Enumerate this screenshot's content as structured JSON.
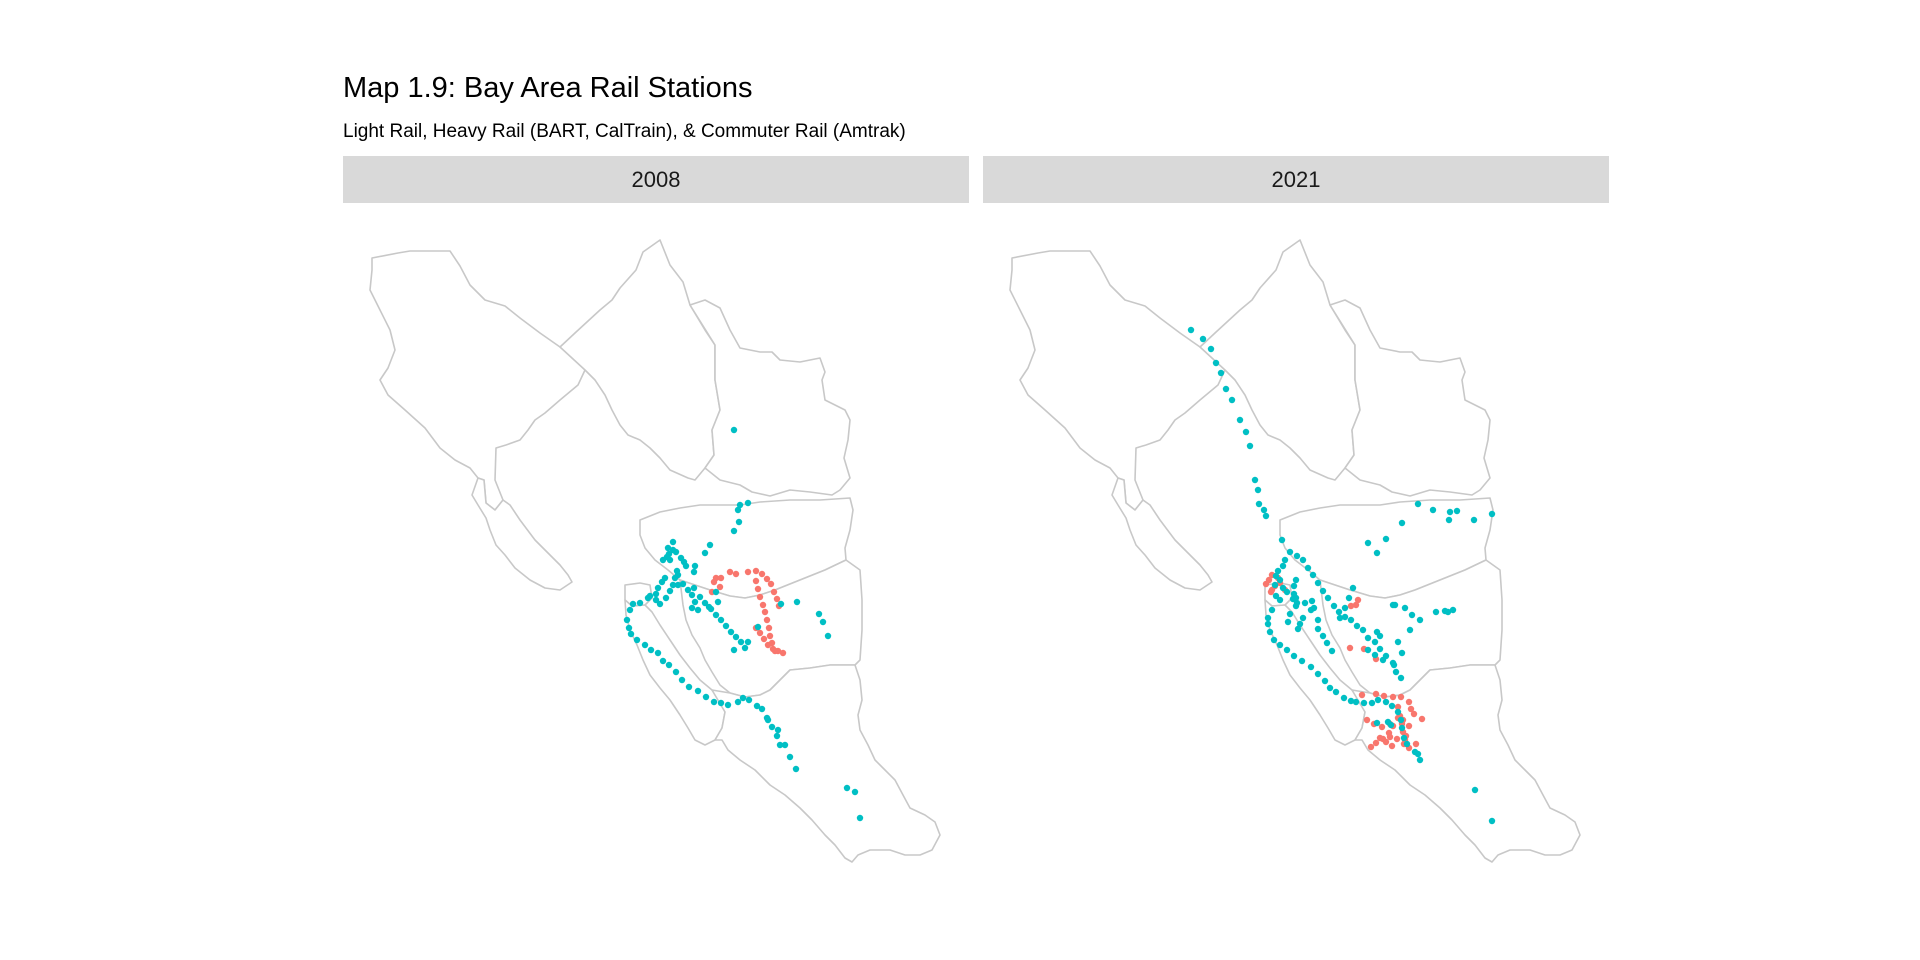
{
  "chart": {
    "title": "Map 1.9: Bay Area Rail Stations",
    "subtitle": "Light Rail, Heavy Rail (BART, CalTrain), & Commuter Rail (Amtrak)"
  },
  "colors": {
    "light_rail": "#f8766d",
    "heavy_commuter_rail": "#00bfc4",
    "boundary": "#c8c8c8",
    "strip": "#d9d9d9"
  },
  "panels": [
    {
      "label": "2008"
    },
    {
      "label": "2021"
    }
  ],
  "chart_data": {
    "type": "scatter",
    "note_series_colors": "salmon = light rail, teal = heavy/commuter rail",
    "panels": [
      "2008",
      "2021"
    ],
    "series": [
      {
        "color": "#f8766d",
        "points_2008": [
          [
            712,
            592
          ],
          [
            720,
            587
          ],
          [
            714,
            582
          ],
          [
            716,
            578
          ],
          [
            721,
            578
          ],
          [
            730,
            572
          ],
          [
            736,
            574
          ],
          [
            748,
            572
          ],
          [
            756,
            571
          ],
          [
            762,
            574
          ],
          [
            767,
            579
          ],
          [
            771,
            584
          ],
          [
            774,
            592
          ],
          [
            777,
            599
          ],
          [
            779,
            606
          ],
          [
            756,
            581
          ],
          [
            758,
            589
          ],
          [
            760,
            597
          ],
          [
            763,
            605
          ],
          [
            765,
            612
          ],
          [
            767,
            620
          ],
          [
            769,
            628
          ],
          [
            770,
            636
          ],
          [
            772,
            643
          ],
          [
            775,
            651
          ],
          [
            756,
            628
          ],
          [
            760,
            633
          ],
          [
            764,
            639
          ],
          [
            768,
            645
          ],
          [
            773,
            649
          ],
          [
            778,
            651
          ],
          [
            783,
            653
          ]
        ],
        "points_2021": [
          [
            1271,
            592
          ],
          [
            1275,
            586
          ],
          [
            1269,
            580
          ],
          [
            1278,
            578
          ],
          [
            1272,
            575
          ],
          [
            1280,
            583
          ],
          [
            1266,
            584
          ],
          [
            1272,
            590
          ],
          [
            1285,
            590
          ],
          [
            1358,
            600
          ],
          [
            1356,
            605
          ],
          [
            1351,
            606
          ],
          [
            1350,
            648
          ],
          [
            1364,
            649
          ],
          [
            1376,
            659
          ],
          [
            1362,
            695
          ],
          [
            1376,
            694
          ],
          [
            1384,
            696
          ],
          [
            1393,
            697
          ],
          [
            1401,
            697
          ],
          [
            1409,
            702
          ],
          [
            1411,
            709
          ],
          [
            1414,
            714
          ],
          [
            1422,
            719
          ],
          [
            1398,
            707
          ],
          [
            1400,
            716
          ],
          [
            1402,
            724
          ],
          [
            1403,
            732
          ],
          [
            1405,
            740
          ],
          [
            1398,
            718
          ],
          [
            1393,
            726
          ],
          [
            1389,
            733
          ],
          [
            1383,
            739
          ],
          [
            1376,
            743
          ],
          [
            1371,
            747
          ],
          [
            1390,
            737
          ],
          [
            1397,
            739
          ],
          [
            1404,
            744
          ],
          [
            1409,
            748
          ],
          [
            1367,
            720
          ],
          [
            1374,
            724
          ],
          [
            1382,
            727
          ],
          [
            1390,
            724
          ],
          [
            1403,
            720
          ],
          [
            1409,
            726
          ],
          [
            1406,
            736
          ],
          [
            1405,
            743
          ],
          [
            1392,
            746
          ],
          [
            1386,
            742
          ],
          [
            1380,
            738
          ],
          [
            1416,
            744
          ]
        ]
      },
      {
        "color": "#00bfc4",
        "points_2008": [
          [
            734,
            430
          ],
          [
            748,
            503
          ],
          [
            738,
            510
          ],
          [
            739,
            522
          ],
          [
            734,
            531
          ],
          [
            740,
            505
          ],
          [
            710,
            545
          ],
          [
            705,
            553
          ],
          [
            695,
            566
          ],
          [
            673,
            542
          ],
          [
            673,
            550
          ],
          [
            669,
            554
          ],
          [
            667,
            557
          ],
          [
            663,
            560
          ],
          [
            668,
            548
          ],
          [
            676,
            552
          ],
          [
            681,
            558
          ],
          [
            684,
            562
          ],
          [
            686,
            566
          ],
          [
            694,
            572
          ],
          [
            677,
            571
          ],
          [
            678,
            575
          ],
          [
            670,
            560
          ],
          [
            673,
            585
          ],
          [
            670,
            591
          ],
          [
            666,
            598
          ],
          [
            660,
            604
          ],
          [
            656,
            600
          ],
          [
            656,
            594
          ],
          [
            658,
            588
          ],
          [
            662,
            582
          ],
          [
            665,
            578
          ],
          [
            650,
            596
          ],
          [
            648,
            598
          ],
          [
            640,
            603
          ],
          [
            633,
            604
          ],
          [
            630,
            610
          ],
          [
            627,
            620
          ],
          [
            629,
            628
          ],
          [
            631,
            634
          ],
          [
            637,
            640
          ],
          [
            645,
            645
          ],
          [
            651,
            650
          ],
          [
            658,
            653
          ],
          [
            663,
            661
          ],
          [
            669,
            665
          ],
          [
            676,
            672
          ],
          [
            682,
            680
          ],
          [
            689,
            687
          ],
          [
            698,
            691
          ],
          [
            706,
            697
          ],
          [
            714,
            702
          ],
          [
            721,
            703
          ],
          [
            728,
            705
          ],
          [
            738,
            702
          ],
          [
            743,
            698
          ],
          [
            749,
            700
          ],
          [
            757,
            706
          ],
          [
            762,
            709
          ],
          [
            767,
            718
          ],
          [
            772,
            727
          ],
          [
            777,
            736
          ],
          [
            780,
            745
          ],
          [
            768,
            720
          ],
          [
            778,
            730
          ],
          [
            785,
            745
          ],
          [
            790,
            757
          ],
          [
            796,
            769
          ],
          [
            675,
            578
          ],
          [
            683,
            584
          ],
          [
            688,
            590
          ],
          [
            694,
            588
          ],
          [
            700,
            597
          ],
          [
            705,
            603
          ],
          [
            711,
            609
          ],
          [
            716,
            615
          ],
          [
            721,
            620
          ],
          [
            726,
            626
          ],
          [
            731,
            632
          ],
          [
            736,
            637
          ],
          [
            741,
            642
          ],
          [
            745,
            648
          ],
          [
            678,
            585
          ],
          [
            692,
            595
          ],
          [
            695,
            602
          ],
          [
            692,
            608
          ],
          [
            698,
            610
          ],
          [
            709,
            607
          ],
          [
            716,
            592
          ],
          [
            718,
            602
          ],
          [
            734,
            650
          ],
          [
            748,
            642
          ],
          [
            758,
            627
          ],
          [
            781,
            604
          ],
          [
            797,
            602
          ],
          [
            819,
            614
          ],
          [
            823,
            622
          ],
          [
            828,
            636
          ],
          [
            847,
            788
          ],
          [
            855,
            792
          ],
          [
            860,
            818
          ]
        ],
        "points_2021": [
          [
            1191,
            330
          ],
          [
            1203,
            339
          ],
          [
            1211,
            349
          ],
          [
            1216,
            363
          ],
          [
            1221,
            373
          ],
          [
            1226,
            389
          ],
          [
            1232,
            400
          ],
          [
            1240,
            420
          ],
          [
            1246,
            432
          ],
          [
            1250,
            446
          ],
          [
            1255,
            480
          ],
          [
            1258,
            490
          ],
          [
            1259,
            504
          ],
          [
            1264,
            510
          ],
          [
            1266,
            516
          ],
          [
            1282,
            540
          ],
          [
            1290,
            552
          ],
          [
            1297,
            556
          ],
          [
            1303,
            560
          ],
          [
            1308,
            568
          ],
          [
            1313,
            575
          ],
          [
            1318,
            583
          ],
          [
            1323,
            591
          ],
          [
            1328,
            598
          ],
          [
            1334,
            606
          ],
          [
            1339,
            612
          ],
          [
            1345,
            617
          ],
          [
            1351,
            620
          ],
          [
            1357,
            626
          ],
          [
            1363,
            630
          ],
          [
            1368,
            638
          ],
          [
            1375,
            642
          ],
          [
            1380,
            649
          ],
          [
            1386,
            656
          ],
          [
            1393,
            663
          ],
          [
            1396,
            672
          ],
          [
            1401,
            678
          ],
          [
            1285,
            560
          ],
          [
            1283,
            566
          ],
          [
            1278,
            571
          ],
          [
            1276,
            576
          ],
          [
            1280,
            580
          ],
          [
            1283,
            588
          ],
          [
            1287,
            592
          ],
          [
            1293,
            599
          ],
          [
            1296,
            606
          ],
          [
            1290,
            614
          ],
          [
            1288,
            622
          ],
          [
            1275,
            585
          ],
          [
            1276,
            596
          ],
          [
            1280,
            600
          ],
          [
            1272,
            610
          ],
          [
            1268,
            618
          ],
          [
            1268,
            624
          ],
          [
            1270,
            632
          ],
          [
            1274,
            640
          ],
          [
            1280,
            645
          ],
          [
            1287,
            650
          ],
          [
            1294,
            656
          ],
          [
            1302,
            661
          ],
          [
            1311,
            667
          ],
          [
            1318,
            674
          ],
          [
            1325,
            681
          ],
          [
            1330,
            688
          ],
          [
            1336,
            692
          ],
          [
            1344,
            698
          ],
          [
            1351,
            701
          ],
          [
            1356,
            702
          ],
          [
            1364,
            703
          ],
          [
            1372,
            703
          ],
          [
            1378,
            700
          ],
          [
            1386,
            702
          ],
          [
            1392,
            706
          ],
          [
            1398,
            712
          ],
          [
            1401,
            720
          ],
          [
            1402,
            728
          ],
          [
            1404,
            738
          ],
          [
            1407,
            744
          ],
          [
            1415,
            752
          ],
          [
            1420,
            760
          ],
          [
            1418,
            754
          ],
          [
            1380,
            636
          ],
          [
            1377,
            632
          ],
          [
            1398,
            642
          ],
          [
            1402,
            653
          ],
          [
            1394,
            665
          ],
          [
            1305,
            603
          ],
          [
            1311,
            610
          ],
          [
            1318,
            620
          ],
          [
            1314,
            608
          ],
          [
            1312,
            601
          ],
          [
            1296,
            580
          ],
          [
            1368,
            650
          ],
          [
            1375,
            655
          ],
          [
            1383,
            660
          ],
          [
            1294,
            586
          ],
          [
            1294,
            594
          ],
          [
            1296,
            598
          ],
          [
            1297,
            603
          ],
          [
            1303,
            618
          ],
          [
            1300,
            624
          ],
          [
            1298,
            629
          ],
          [
            1318,
            629
          ],
          [
            1323,
            636
          ],
          [
            1327,
            643
          ],
          [
            1332,
            651
          ],
          [
            1340,
            618
          ],
          [
            1345,
            608
          ],
          [
            1349,
            598
          ],
          [
            1353,
            588
          ],
          [
            1368,
            543
          ],
          [
            1377,
            553
          ],
          [
            1386,
            539
          ],
          [
            1402,
            523
          ],
          [
            1418,
            504
          ],
          [
            1433,
            510
          ],
          [
            1450,
            512
          ],
          [
            1457,
            511
          ],
          [
            1474,
            520
          ],
          [
            1449,
            520
          ],
          [
            1492,
            514
          ],
          [
            1395,
            605
          ],
          [
            1405,
            608
          ],
          [
            1412,
            615
          ],
          [
            1420,
            620
          ],
          [
            1436,
            612
          ],
          [
            1445,
            611
          ],
          [
            1448,
            612
          ],
          [
            1453,
            610
          ],
          [
            1410,
            630
          ],
          [
            1393,
            605
          ],
          [
            1475,
            790
          ],
          [
            1492,
            821
          ],
          [
            1377,
            723
          ],
          [
            1391,
            725
          ],
          [
            1388,
            722
          ]
        ]
      }
    ]
  }
}
